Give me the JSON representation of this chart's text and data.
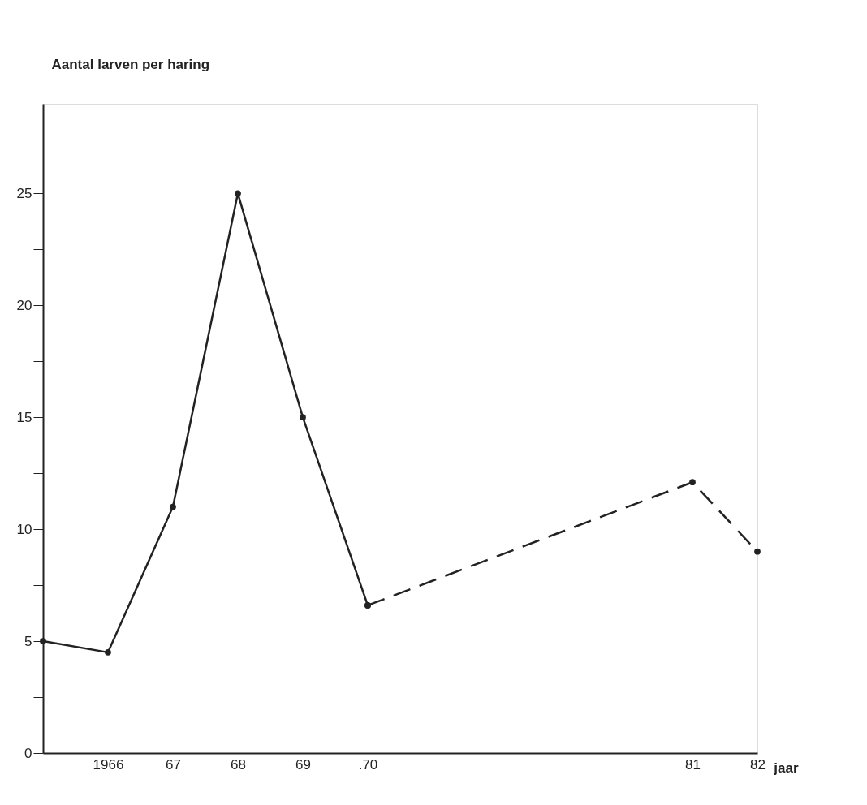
{
  "chart_data": {
    "type": "line",
    "xlabel": "jaar",
    "ylabel": "Aantal larven per haring",
    "categories": [
      null,
      "1966",
      "67",
      "68",
      "69",
      ".70",
      null,
      null,
      null,
      null,
      "81",
      "82"
    ],
    "series": [
      {
        "color": "#222222",
        "line_style": "solid",
        "values": [
          5,
          4.5,
          11,
          25,
          15,
          6.6,
          null,
          null,
          null,
          null,
          null,
          null
        ]
      },
      {
        "color": "#222222",
        "line_style": "dashed",
        "values": [
          null,
          null,
          null,
          null,
          null,
          6.6,
          null,
          null,
          null,
          null,
          12.1,
          9
        ]
      }
    ],
    "ylim": [
      0,
      29
    ],
    "yticks": [
      0,
      {
        "value": 2.5,
        "label": null
      },
      5,
      {
        "value": 7.5,
        "label": null
      },
      10,
      {
        "value": 12.5,
        "label": null
      },
      15,
      {
        "value": 17.5,
        "label": null
      },
      20,
      {
        "value": 22.5,
        "label": null
      },
      25
    ],
    "marker": "circle"
  }
}
